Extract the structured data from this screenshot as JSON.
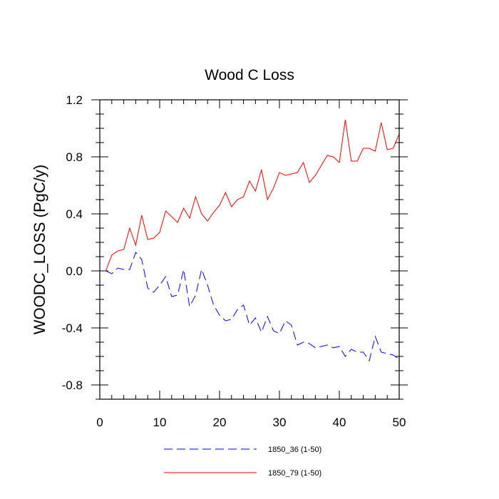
{
  "chart_data": {
    "type": "line",
    "title": "Wood C Loss",
    "xlabel": "",
    "ylabel": "WOODC_LOSS  (PgC/y)",
    "xlim": [
      0,
      50
    ],
    "ylim": [
      -0.9,
      1.2
    ],
    "xticks": [
      0,
      10,
      20,
      30,
      40,
      50
    ],
    "xtick_labels": [
      "0",
      "10",
      "20",
      "30",
      "40",
      "50"
    ],
    "yticks": [
      -0.8,
      -0.4,
      0.0,
      0.4,
      0.8,
      1.2
    ],
    "ytick_labels": [
      "-0.8",
      "-0.4",
      "0.0",
      "0.4",
      "0.8",
      "1.2"
    ],
    "legend_position": "bottom-center",
    "x": [
      1,
      2,
      3,
      4,
      5,
      6,
      7,
      8,
      9,
      10,
      11,
      12,
      13,
      14,
      15,
      16,
      17,
      18,
      19,
      20,
      21,
      22,
      23,
      24,
      25,
      26,
      27,
      28,
      29,
      30,
      31,
      32,
      33,
      34,
      35,
      36,
      37,
      38,
      39,
      40,
      41,
      42,
      43,
      44,
      45,
      46,
      47,
      48,
      49,
      50
    ],
    "series": [
      {
        "name": "1850_36 (1-50)",
        "color": "#0000ff",
        "dash": "dashed",
        "values": [
          0.0,
          -0.02,
          0.02,
          0.01,
          0.01,
          0.13,
          0.08,
          -0.12,
          -0.15,
          -0.1,
          -0.04,
          -0.18,
          -0.17,
          0.01,
          -0.25,
          -0.17,
          0.01,
          -0.1,
          -0.24,
          -0.31,
          -0.35,
          -0.34,
          -0.27,
          -0.24,
          -0.38,
          -0.33,
          -0.43,
          -0.32,
          -0.42,
          -0.44,
          -0.35,
          -0.38,
          -0.52,
          -0.5,
          -0.51,
          -0.54,
          -0.53,
          -0.52,
          -0.54,
          -0.53,
          -0.6,
          -0.55,
          -0.57,
          -0.57,
          -0.63,
          -0.46,
          -0.57,
          -0.58,
          -0.59,
          -0.62
        ]
      },
      {
        "name": "1850_79 (1-50)",
        "color": "#ff0000",
        "dash": "solid",
        "values": [
          0.0,
          0.11,
          0.14,
          0.15,
          0.3,
          0.18,
          0.39,
          0.22,
          0.23,
          0.27,
          0.42,
          0.38,
          0.34,
          0.44,
          0.37,
          0.52,
          0.4,
          0.35,
          0.41,
          0.46,
          0.55,
          0.45,
          0.5,
          0.52,
          0.63,
          0.56,
          0.71,
          0.5,
          0.58,
          0.69,
          0.67,
          0.68,
          0.69,
          0.76,
          0.62,
          0.67,
          0.74,
          0.81,
          0.8,
          0.76,
          1.06,
          0.77,
          0.77,
          0.86,
          0.86,
          0.84,
          1.04,
          0.85,
          0.86,
          0.96
        ]
      }
    ]
  }
}
